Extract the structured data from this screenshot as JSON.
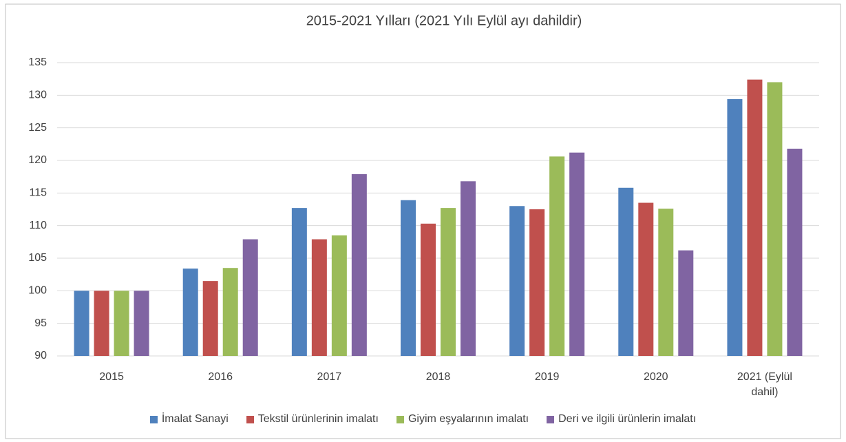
{
  "chart_data": {
    "type": "bar",
    "title": "2015-2021 Yılları (2021 Yılı Eylül ayı dahildir)",
    "categories": [
      "2015",
      "2016",
      "2017",
      "2018",
      "2019",
      "2020",
      "2021 (Eylül dahil)"
    ],
    "series": [
      {
        "name": "İmalat Sanayi",
        "color": "#4f81bd",
        "values": [
          100,
          103.4,
          112.7,
          113.9,
          113.0,
          115.8,
          129.4
        ]
      },
      {
        "name": "Tekstil ürünlerinin imalatı",
        "color": "#c0504d",
        "values": [
          100,
          101.5,
          107.9,
          110.3,
          112.5,
          113.5,
          132.4
        ]
      },
      {
        "name": "Giyim eşyalarının imalatı",
        "color": "#9bbb59",
        "values": [
          100,
          103.5,
          108.5,
          112.7,
          120.6,
          112.6,
          132.0
        ]
      },
      {
        "name": "Deri ve ilgili ürünlerin imalatı",
        "color": "#8064a2",
        "values": [
          100,
          107.9,
          117.9,
          116.8,
          121.2,
          106.2,
          121.8
        ]
      }
    ],
    "ylim": [
      90,
      135
    ],
    "yticks": [
      90,
      95,
      100,
      105,
      110,
      115,
      120,
      125,
      130,
      135
    ],
    "grid": true,
    "legend": "bottom"
  }
}
